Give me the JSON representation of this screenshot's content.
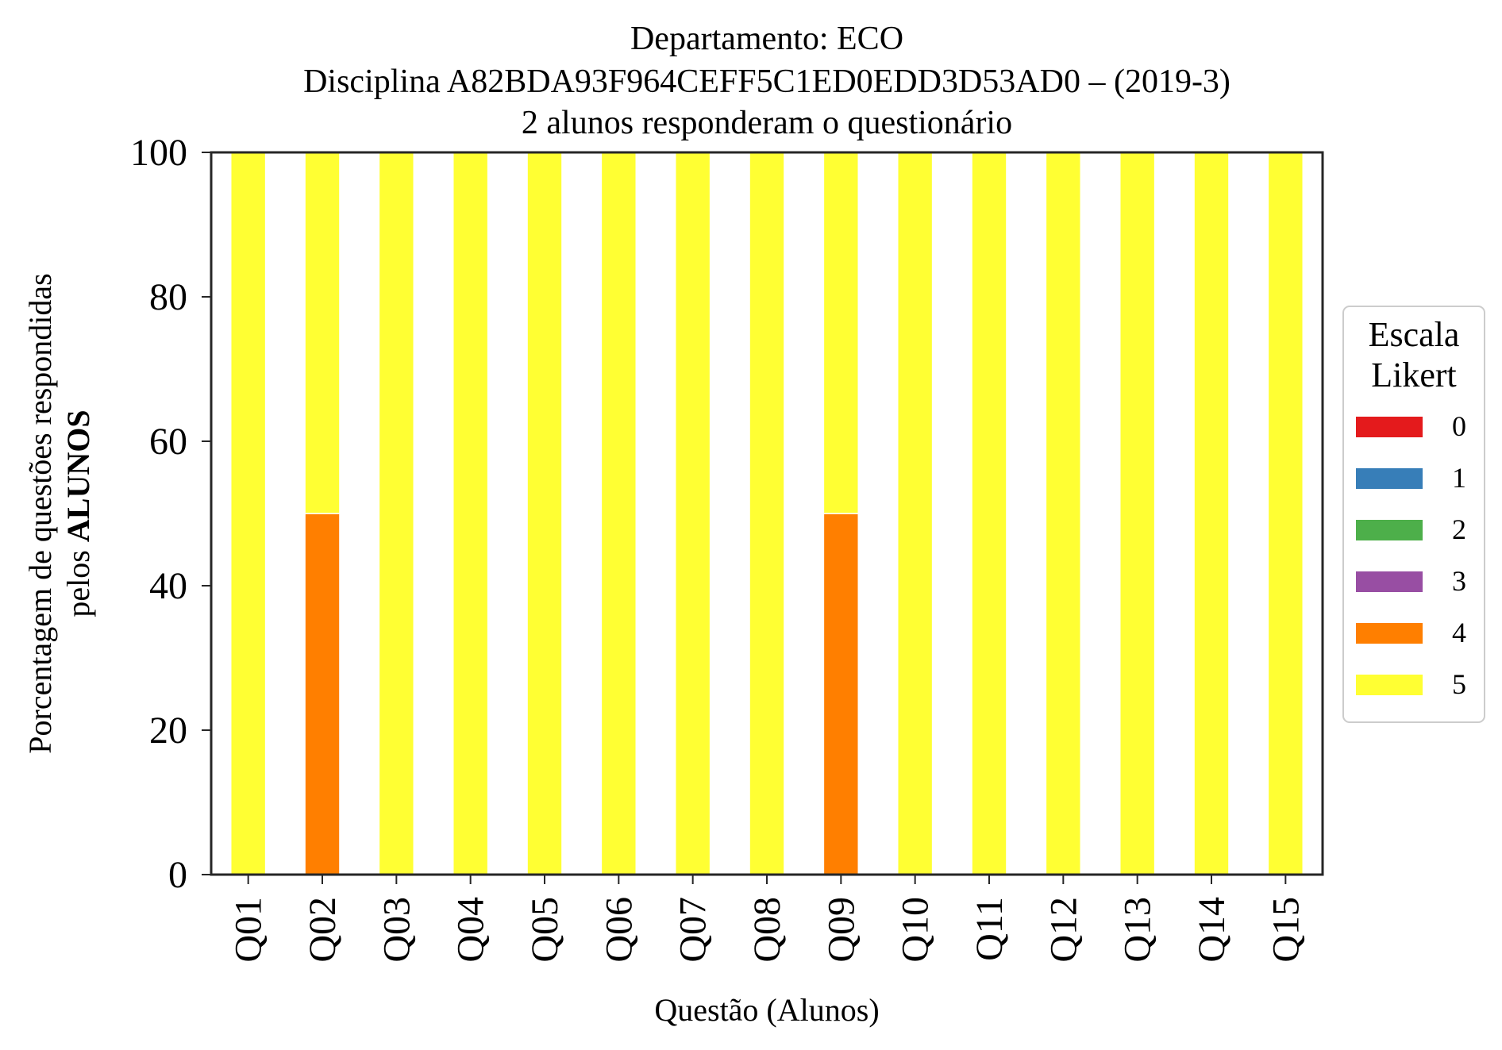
{
  "chart_data": {
    "type": "bar",
    "stacked": true,
    "title": [
      "Departamento: ECO",
      "Disciplina A82BDA93F964CEFF5C1ED0EDD3D53AD0 – (2019-3)",
      "2 alunos responderam o questionário"
    ],
    "xlabel": "Questão (Alunos)",
    "ylabel_line1": "Porcentagem de questões respondidas",
    "ylabel_line2_prefix": "pelos ",
    "ylabel_line2_bold": "ALUNOS",
    "ylim": [
      0,
      100
    ],
    "yticks": [
      "0",
      "20",
      "40",
      "60",
      "80",
      "100"
    ],
    "categories": [
      "Q01",
      "Q02",
      "Q03",
      "Q04",
      "Q05",
      "Q06",
      "Q07",
      "Q08",
      "Q09",
      "Q10",
      "Q11",
      "Q12",
      "Q13",
      "Q14",
      "Q15"
    ],
    "legend": {
      "title": [
        "Escala",
        "Likert"
      ],
      "placement": "center-right, outside plot"
    },
    "grid": false,
    "series": [
      {
        "name": "0",
        "color": "#e41a1c",
        "values": [
          0,
          0,
          0,
          0,
          0,
          0,
          0,
          0,
          0,
          0,
          0,
          0,
          0,
          0,
          0
        ]
      },
      {
        "name": "1",
        "color": "#377eb8",
        "values": [
          0,
          0,
          0,
          0,
          0,
          0,
          0,
          0,
          0,
          0,
          0,
          0,
          0,
          0,
          0
        ]
      },
      {
        "name": "2",
        "color": "#4daf4a",
        "values": [
          0,
          0,
          0,
          0,
          0,
          0,
          0,
          0,
          0,
          0,
          0,
          0,
          0,
          0,
          0
        ]
      },
      {
        "name": "3",
        "color": "#984ea3",
        "values": [
          0,
          0,
          0,
          0,
          0,
          0,
          0,
          0,
          0,
          0,
          0,
          0,
          0,
          0,
          0
        ]
      },
      {
        "name": "4",
        "color": "#ff7f00",
        "values": [
          0,
          50,
          0,
          0,
          0,
          0,
          0,
          0,
          50,
          0,
          0,
          0,
          0,
          0,
          0
        ]
      },
      {
        "name": "5",
        "color": "#ffff33",
        "values": [
          100,
          50,
          100,
          100,
          100,
          100,
          100,
          100,
          50,
          100,
          100,
          100,
          100,
          100,
          100
        ]
      }
    ]
  }
}
